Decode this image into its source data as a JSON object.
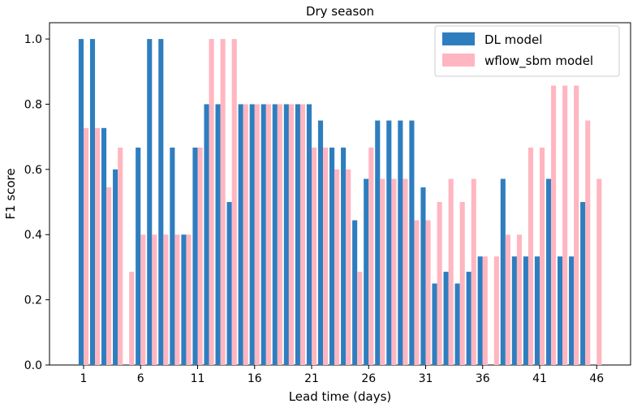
{
  "chart_data": {
    "type": "bar",
    "title": "Dry season",
    "xlabel": "Lead time (days)",
    "ylabel": "F1 score",
    "ylim": [
      0,
      1.05
    ],
    "yticks": [
      "0.0",
      "0.2",
      "0.4",
      "0.6",
      "0.8",
      "1.0"
    ],
    "xticks": [
      1,
      6,
      11,
      16,
      21,
      26,
      31,
      36,
      41,
      46
    ],
    "legend_position": "top-right",
    "categories": [
      1,
      2,
      3,
      4,
      5,
      6,
      7,
      8,
      9,
      10,
      11,
      12,
      13,
      14,
      15,
      16,
      17,
      18,
      19,
      20,
      21,
      22,
      23,
      24,
      25,
      26,
      27,
      28,
      29,
      30,
      31,
      32,
      33,
      34,
      35,
      36,
      37,
      38,
      39,
      40,
      41,
      42,
      43,
      44,
      45,
      46
    ],
    "series": [
      {
        "name": "DL model",
        "color": "#2e7ebf",
        "values": [
          1.0,
          1.0,
          0.727,
          0.6,
          0.0,
          0.667,
          1.0,
          1.0,
          0.667,
          0.4,
          0.667,
          0.8,
          0.8,
          0.5,
          0.8,
          0.8,
          0.8,
          0.8,
          0.8,
          0.8,
          0.8,
          0.75,
          0.667,
          0.667,
          0.444,
          0.571,
          0.75,
          0.75,
          0.75,
          0.75,
          0.545,
          0.25,
          0.286,
          0.25,
          0.286,
          0.333,
          0.0,
          0.571,
          0.333,
          0.333,
          0.333,
          0.571,
          0.333,
          0.333,
          0.5,
          0.0
        ]
      },
      {
        "name": "wflow_sbm model",
        "color": "#ffb6c1",
        "values": [
          0.727,
          0.727,
          0.545,
          0.667,
          0.286,
          0.4,
          0.4,
          0.4,
          0.4,
          0.4,
          0.667,
          1.0,
          1.0,
          1.0,
          0.8,
          0.8,
          0.8,
          0.8,
          0.8,
          0.8,
          0.667,
          0.667,
          0.6,
          0.6,
          0.286,
          0.667,
          0.571,
          0.571,
          0.571,
          0.444,
          0.444,
          0.5,
          0.571,
          0.5,
          0.571,
          0.333,
          0.333,
          0.4,
          0.4,
          0.667,
          0.667,
          0.857,
          0.857,
          0.857,
          0.75,
          0.571
        ]
      }
    ]
  }
}
